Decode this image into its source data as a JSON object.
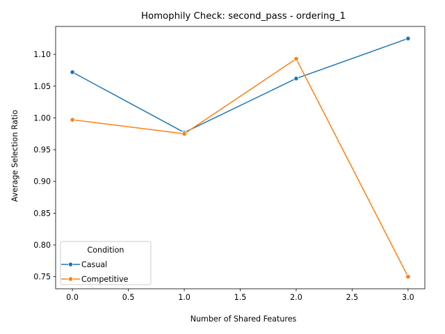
{
  "chart_data": {
    "type": "line",
    "title": "Homophily Check: second_pass - ordering_1",
    "xlabel": "Number of Shared Features",
    "ylabel": "Average Selection Ratio",
    "xlim": [
      -0.15,
      3.15
    ],
    "ylim": [
      0.731,
      1.144
    ],
    "xticks": [
      0.0,
      0.5,
      1.0,
      1.5,
      2.0,
      2.5,
      3.0
    ],
    "xtick_labels": [
      "0.0",
      "0.5",
      "1.0",
      "1.5",
      "2.0",
      "2.5",
      "3.0"
    ],
    "yticks": [
      0.75,
      0.8,
      0.85,
      0.9,
      0.95,
      1.0,
      1.05,
      1.1
    ],
    "ytick_labels": [
      "0.75",
      "0.80",
      "0.85",
      "0.90",
      "0.95",
      "1.00",
      "1.05",
      "1.10"
    ],
    "grid": false,
    "legend": {
      "title": "Condition",
      "placement": "lower-left"
    },
    "series": [
      {
        "name": "Casual",
        "color": "#1f77b4",
        "marker": "circle",
        "x": [
          0,
          1,
          2,
          3
        ],
        "y": [
          1.072,
          0.977,
          1.062,
          1.125
        ]
      },
      {
        "name": "Competitive",
        "color": "#ff7f0e",
        "marker": "circle",
        "x": [
          0,
          1,
          2,
          3
        ],
        "y": [
          0.997,
          0.975,
          1.093,
          0.75
        ]
      }
    ]
  }
}
